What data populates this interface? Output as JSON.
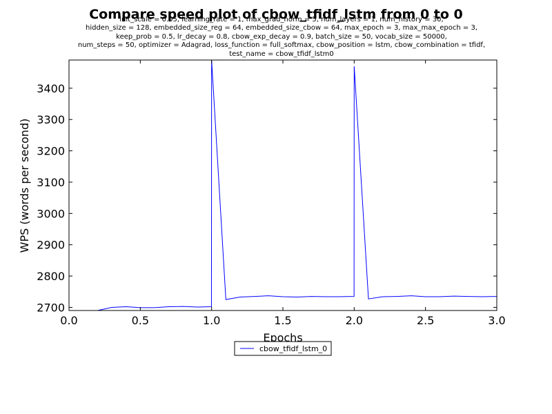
{
  "chart_data": {
    "type": "line",
    "title": "Compare speed plot of cbow_tfidf_lstm from 0 to 0",
    "subtitle_lines": [
      "init_scale = 0.05, learning_rate = 1, max_grad_norm = 5, num_layers = 1, num_history = 30,",
      "hidden_size = 128, embedded_size_reg = 64, embedded_size_cbow = 64, max_epoch = 3, max_max_epoch = 3,",
      "keep_prob = 0.5, lr_decay = 0.8, cbow_exp_decay = 0.9, batch_size = 50, vocab_size = 50000,",
      "num_steps = 50, optimizer = Adagrad, loss_function = full_softmax, cbow_position = lstm, cbow_combination = tfidf,",
      "test_name = cbow_tfidf_lstm0"
    ],
    "xlabel": "Epochs",
    "ylabel": "WPS (words per second)",
    "xlim": [
      0.0,
      3.0
    ],
    "ylim": [
      2690,
      3490
    ],
    "xticks": [
      "0.0",
      "0.5",
      "1.0",
      "1.5",
      "2.0",
      "2.5",
      "3.0"
    ],
    "yticks": [
      "2700",
      "2800",
      "2900",
      "3000",
      "3100",
      "3200",
      "3300",
      "3400"
    ],
    "grid": false,
    "legend_position": "below plot, center",
    "series": [
      {
        "name": "cbow_tfidf_lstm_0",
        "color": "#0000ff",
        "x": [
          0.0,
          0.1,
          0.2,
          0.3,
          0.4,
          0.5,
          0.6,
          0.7,
          0.8,
          0.9,
          0.999,
          1.0,
          1.1,
          1.2,
          1.3,
          1.4,
          1.5,
          1.6,
          1.7,
          1.8,
          1.9,
          1.999,
          2.0,
          2.1,
          2.2,
          2.3,
          2.4,
          2.5,
          2.6,
          2.7,
          2.8,
          2.9,
          3.0
        ],
        "y": [
          2660,
          2672,
          2690,
          2700,
          2702,
          2699,
          2699,
          2702,
          2703,
          2701,
          2702,
          3490,
          2725,
          2733,
          2735,
          2737,
          2734,
          2733,
          2735,
          2734,
          2734,
          2735,
          3470,
          2727,
          2734,
          2735,
          2737,
          2734,
          2734,
          2736,
          2735,
          2734,
          2735
        ]
      }
    ]
  }
}
